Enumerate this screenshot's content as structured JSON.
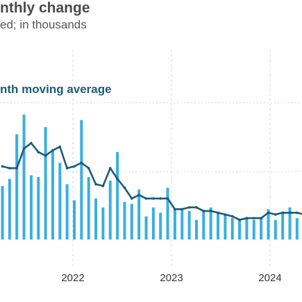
{
  "chart_data": {
    "type": "bar",
    "title": "nthly change",
    "subtitle": "ed; in thousands",
    "xlabel": "",
    "ylabel": "",
    "x_ticks": [
      "2022",
      "2023",
      "2024"
    ],
    "grid": "dashed",
    "series": [
      {
        "kind": "bar",
        "color": "#3aaee0",
        "values": [
          300,
          340,
          590,
          700,
          360,
          350,
          630,
          500,
          430,
          310,
          220,
          670,
          350,
          230,
          180,
          330,
          490,
          210,
          200,
          280,
          130,
          180,
          150,
          290,
          170,
          170,
          160,
          110,
          160,
          180,
          150,
          140,
          120,
          110,
          120,
          110,
          120,
          170,
          110,
          150,
          180,
          120,
          100
        ]
      },
      {
        "name": "nth moving average",
        "kind": "line",
        "color": "#1c5a7a",
        "values": [
          410,
          400,
          400,
          510,
          540,
          490,
          470,
          500,
          520,
          400,
          410,
          430,
          400,
          310,
          300,
          400,
          340,
          290,
          230,
          250,
          230,
          230,
          230,
          230,
          170,
          170,
          180,
          180,
          160,
          160,
          150,
          140,
          130,
          110,
          120,
          120,
          120,
          150,
          140,
          150,
          150,
          150,
          140
        ]
      }
    ]
  }
}
